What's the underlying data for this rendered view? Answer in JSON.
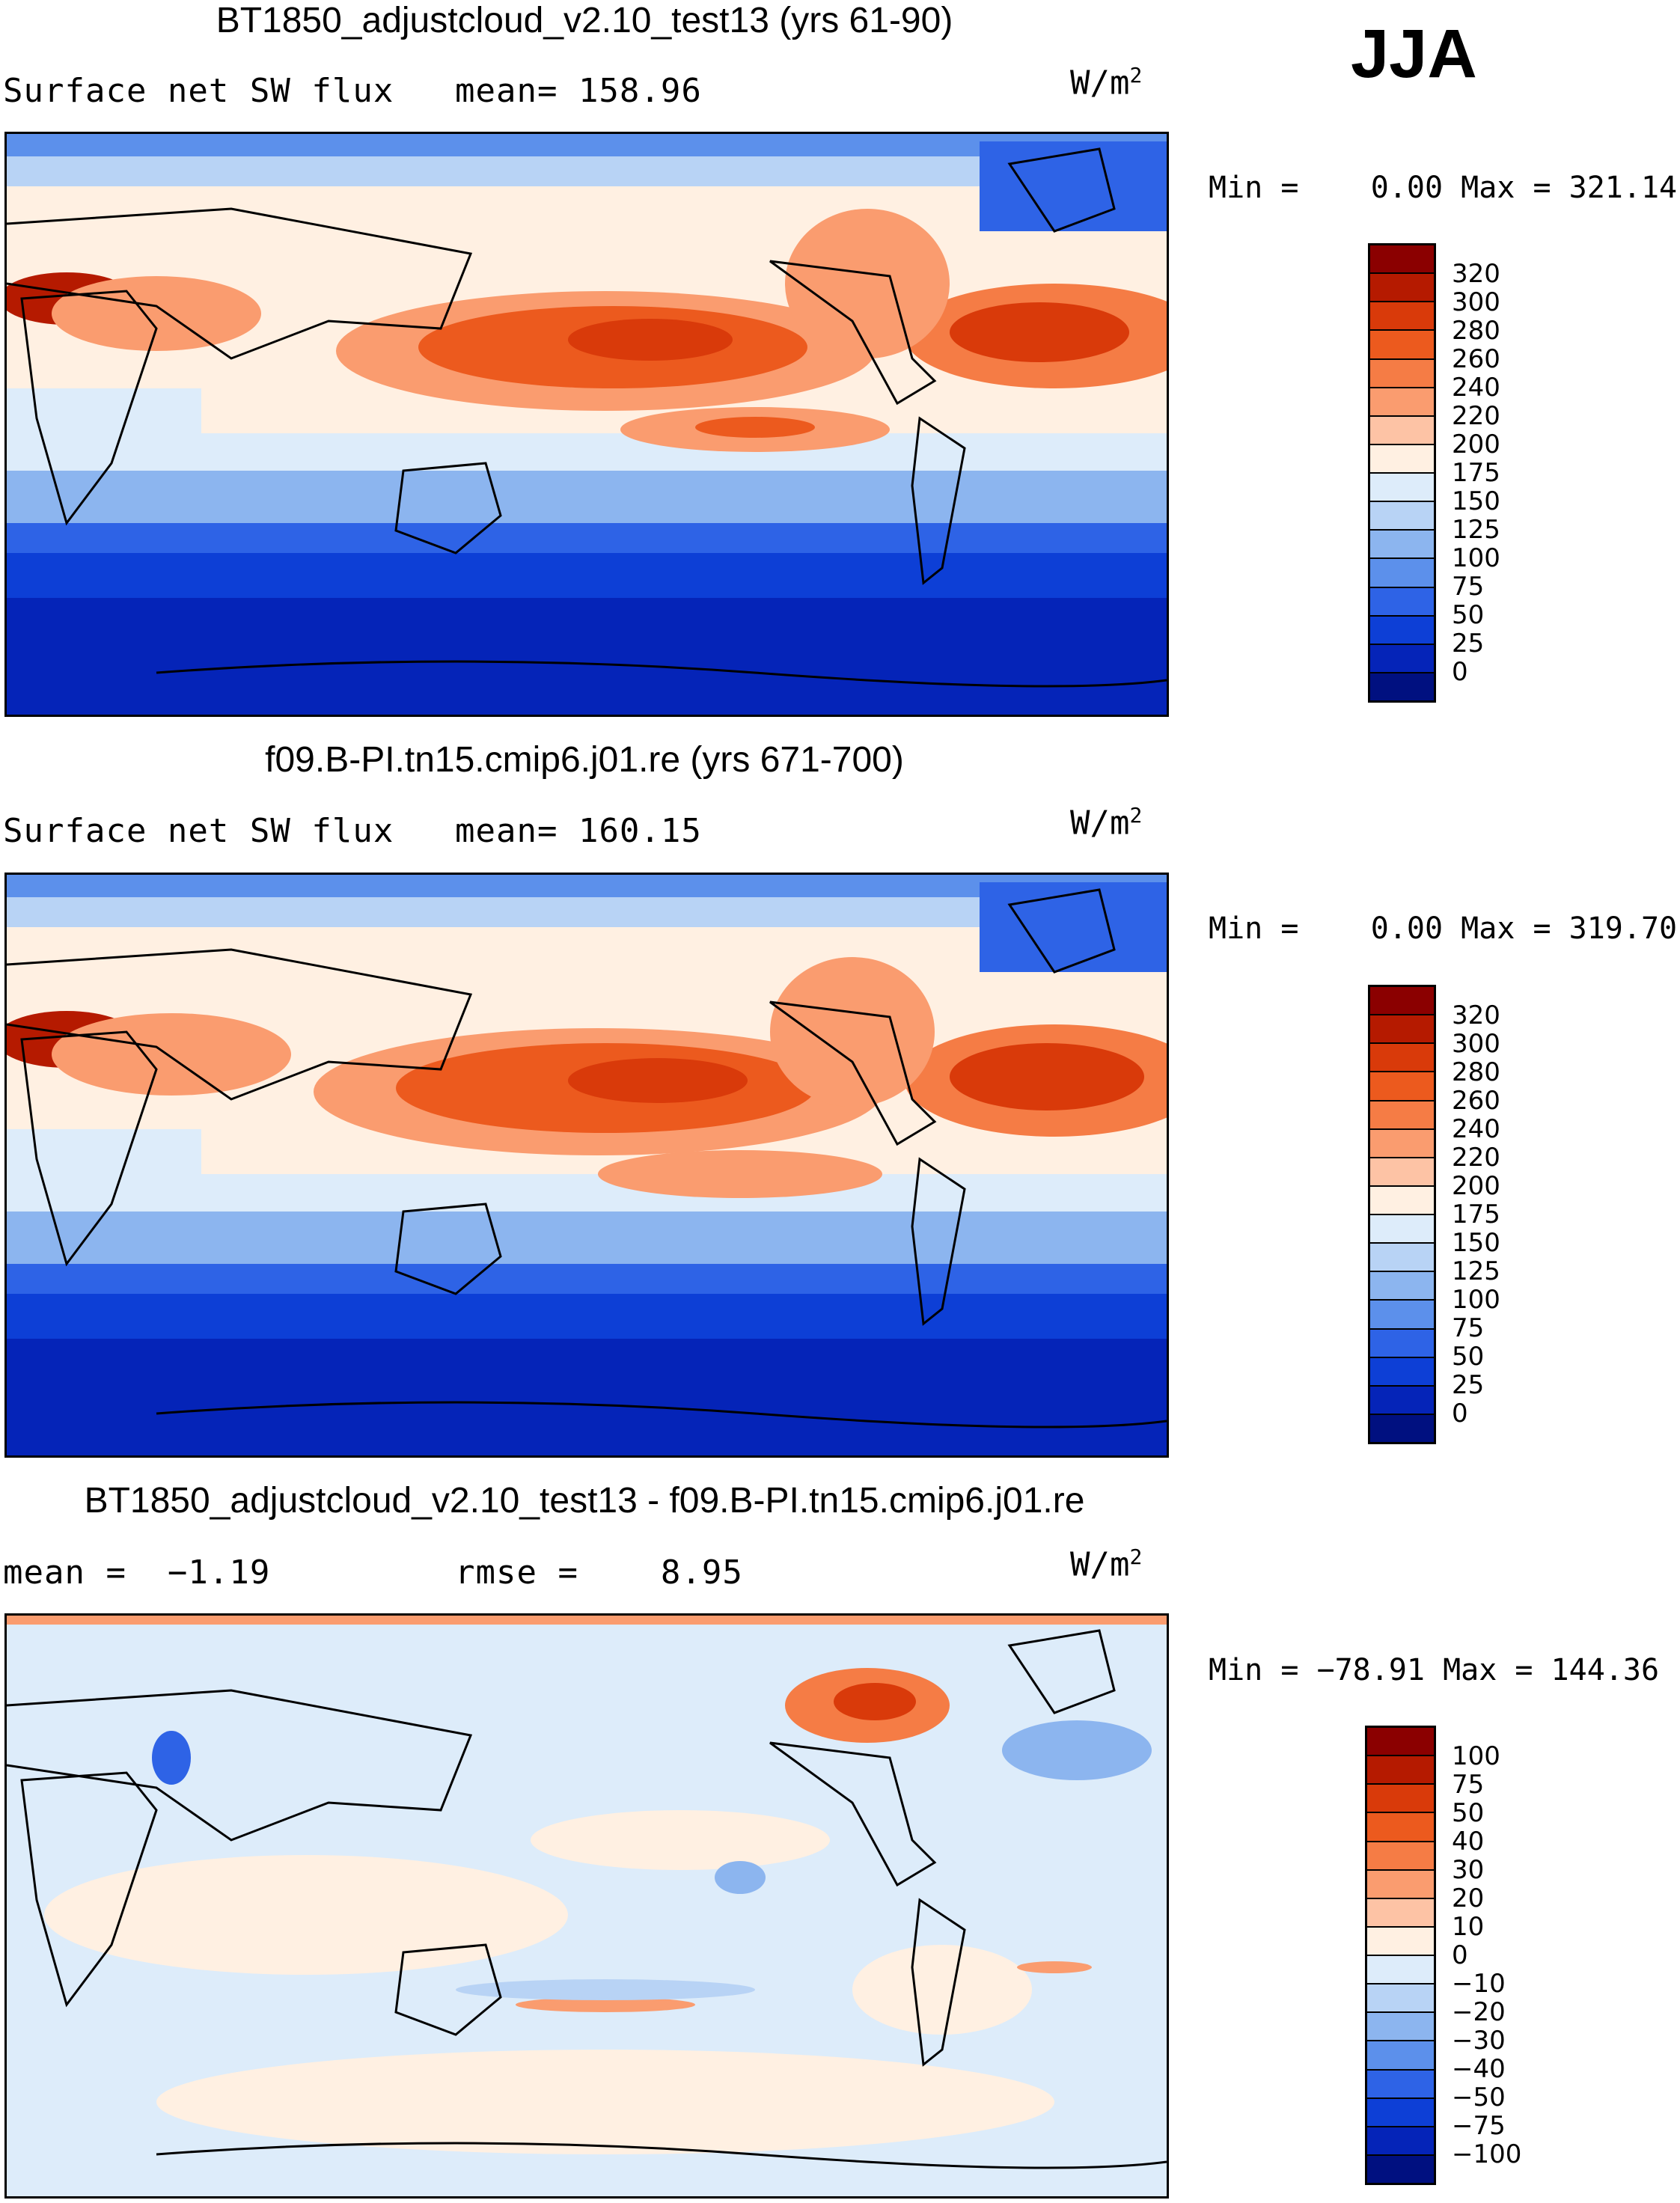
{
  "season": "JJA",
  "panels": [
    {
      "title": "BT1850_adjustcloud_v2.10_test13 (yrs 61-90)",
      "left_label": "Surface net SW flux",
      "mid_label": "mean= 158.96",
      "units": "W/m",
      "units_sup": "2",
      "minmax": "Min =    0.00 Max = 321.14",
      "cbar_labels": [
        "320",
        "300",
        "280",
        "260",
        "240",
        "220",
        "200",
        "175",
        "150",
        "125",
        "100",
        "75",
        "50",
        "25",
        "0"
      ],
      "cbar_colors": [
        "#8b0000",
        "#b51a00",
        "#d93a0a",
        "#ec5a1e",
        "#f57c45",
        "#fa9c6f",
        "#fdc3a5",
        "#fff0e2",
        "#ddecfa",
        "#b8d3f5",
        "#8cb5ef",
        "#5c90eb",
        "#2e63e6",
        "#0d3fd6",
        "#0524b8",
        "#001080"
      ]
    },
    {
      "title": "f09.B-PI.tn15.cmip6.j01.re (yrs 671-700)",
      "left_label": "Surface net SW flux",
      "mid_label": "mean= 160.15",
      "units": "W/m",
      "units_sup": "2",
      "minmax": "Min =    0.00 Max = 319.70",
      "cbar_labels": [
        "320",
        "300",
        "280",
        "260",
        "240",
        "220",
        "200",
        "175",
        "150",
        "125",
        "100",
        "75",
        "50",
        "25",
        "0"
      ],
      "cbar_colors": [
        "#8b0000",
        "#b51a00",
        "#d93a0a",
        "#ec5a1e",
        "#f57c45",
        "#fa9c6f",
        "#fdc3a5",
        "#fff0e2",
        "#ddecfa",
        "#b8d3f5",
        "#8cb5ef",
        "#5c90eb",
        "#2e63e6",
        "#0d3fd6",
        "#0524b8",
        "#001080"
      ]
    },
    {
      "title": "BT1850_adjustcloud_v2.10_test13 - f09.B-PI.tn15.cmip6.j01.re",
      "left_label": "mean =  −1.19",
      "mid_label": "rmse =    8.95",
      "units": "W/m",
      "units_sup": "2",
      "minmax": "Min = −78.91 Max = 144.36",
      "cbar_labels": [
        "100",
        "75",
        "50",
        "40",
        "30",
        "20",
        "10",
        "0",
        "−10",
        "−20",
        "−30",
        "−40",
        "−50",
        "−75",
        "−100"
      ],
      "cbar_colors": [
        "#8b0000",
        "#b51a00",
        "#d93a0a",
        "#ec5a1e",
        "#f57c45",
        "#fa9c6f",
        "#fdc3a5",
        "#fff0e2",
        "#ddecfa",
        "#b8d3f5",
        "#8cb5ef",
        "#5c90eb",
        "#2e63e6",
        "#0d3fd6",
        "#0524b8",
        "#001080"
      ]
    }
  ]
}
